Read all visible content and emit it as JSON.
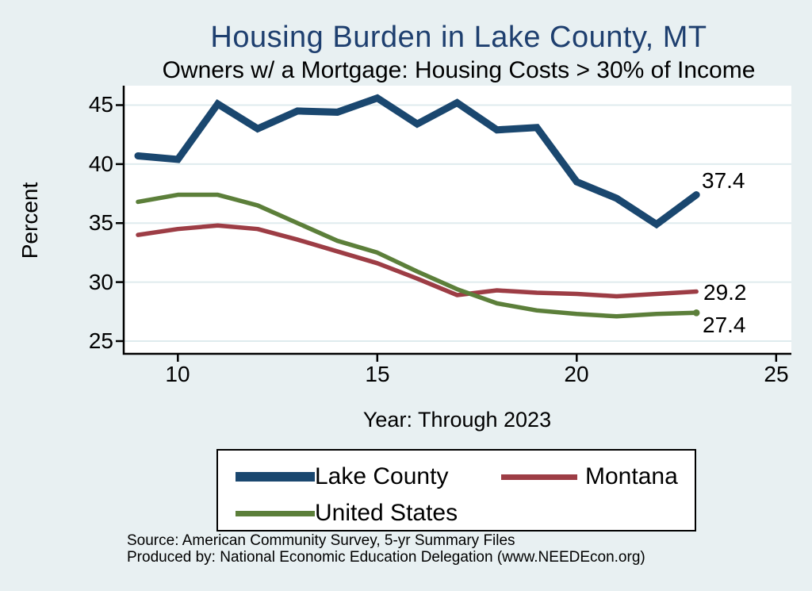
{
  "title": "Housing Burden in Lake County, MT",
  "subtitle": "Owners w/ a Mortgage: Housing Costs > 30% of Income",
  "colors": {
    "background": "#e8f0f2",
    "plot_background": "#ffffff",
    "gridline": "#dfebee",
    "axis": "#000000",
    "title_text": "#1e3f6f",
    "lake_county": "#1a476f",
    "montana": "#9d3d45",
    "united_states": "#5c7f3a"
  },
  "chart_data": {
    "type": "line",
    "title": "Housing Burden in Lake County, MT",
    "subtitle": "Owners w/ a Mortgage: Housing Costs > 30% of Income",
    "xlabel": "Year: Through 2023",
    "ylabel": "Percent",
    "grid": true,
    "legend_position": "bottom",
    "xlim": [
      8.6,
      25.4
    ],
    "ylim": [
      24.0,
      46.6
    ],
    "xticks": [
      10,
      15,
      20,
      25
    ],
    "yticks": [
      25,
      30,
      35,
      40,
      45
    ],
    "x": [
      9,
      10,
      11,
      12,
      13,
      14,
      15,
      16,
      17,
      18,
      19,
      20,
      21,
      22,
      23
    ],
    "series": [
      {
        "name": "Lake County",
        "color_key": "lake_county",
        "line_width": 9,
        "values": [
          40.7,
          40.4,
          45.1,
          43.0,
          44.5,
          44.4,
          45.6,
          43.4,
          45.2,
          42.9,
          43.1,
          38.5,
          37.1,
          34.9,
          37.4
        ],
        "end_label": "37.4"
      },
      {
        "name": "Montana",
        "color_key": "montana",
        "line_width": 5.5,
        "values": [
          34.0,
          34.5,
          34.8,
          34.5,
          33.6,
          32.6,
          31.6,
          30.3,
          28.9,
          29.3,
          29.1,
          29.0,
          28.8,
          29.0,
          29.2
        ],
        "end_label": "29.2"
      },
      {
        "name": "United States",
        "color_key": "united_states",
        "line_width": 5.5,
        "values": [
          36.8,
          37.4,
          37.4,
          36.5,
          35.0,
          33.5,
          32.5,
          30.9,
          29.4,
          28.2,
          27.6,
          27.3,
          27.1,
          27.3,
          27.4
        ],
        "end_label": "27.4"
      }
    ]
  },
  "legend": {
    "items": [
      {
        "label": "Lake County",
        "color_key": "lake_county"
      },
      {
        "label": "Montana",
        "color_key": "montana"
      },
      {
        "label": "United States",
        "color_key": "united_states"
      }
    ]
  },
  "footer": {
    "source": "Source: American Community Survey, 5-yr Summary Files",
    "produced_by": "Produced by: National Economic Education Delegation (www.NEEDEcon.org)"
  }
}
